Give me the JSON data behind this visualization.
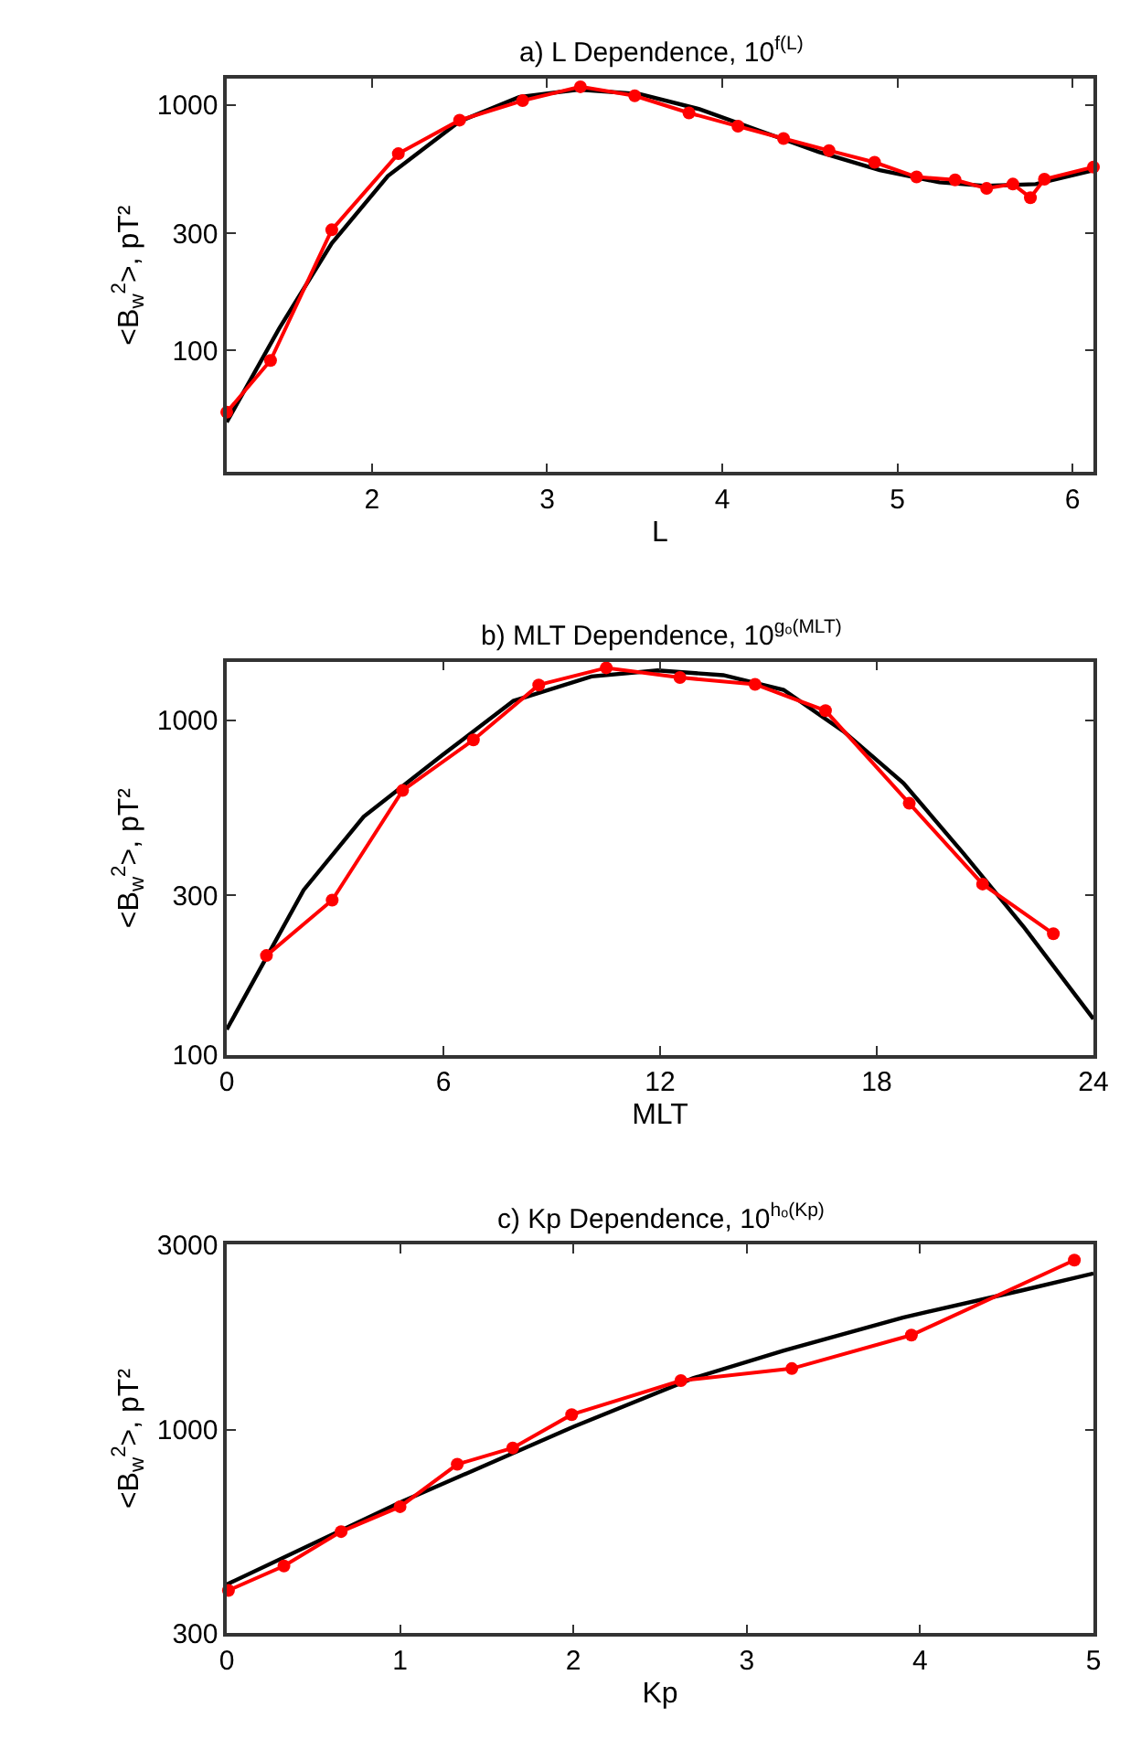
{
  "chart_data": [
    {
      "type": "line",
      "title": "a) L Dependence, 10$^{f(L)}$",
      "xlabel": "L",
      "ylabel": "<B$_{w}$$^{2}$>, pT²",
      "log": "y",
      "xlim": [
        1.17,
        6.12
      ],
      "xticks": [
        2,
        3,
        4,
        5,
        6
      ],
      "ylim": [
        32,
        1280
      ],
      "yticks": [
        100,
        300,
        1000
      ],
      "series": [
        {
          "color": "#ff0000",
          "marker": "circle",
          "x": [
            1.17,
            1.42,
            1.77,
            2.15,
            2.5,
            2.86,
            3.19,
            3.5,
            3.81,
            4.09,
            4.35,
            4.61,
            4.87,
            5.11,
            5.33,
            5.51,
            5.66,
            5.76,
            5.84,
            6.12
          ],
          "values": [
            56,
            91,
            310,
            633,
            867,
            1041,
            1186,
            1090,
            928,
            819,
            730,
            652,
            584,
            509,
            495,
            457,
            476,
            419,
            498,
            558
          ]
        },
        {
          "color": "#000000",
          "marker": "none",
          "x": [
            1.17,
            1.47,
            1.77,
            2.09,
            2.5,
            2.84,
            3.18,
            3.53,
            3.87,
            4.21,
            4.55,
            4.9,
            5.24,
            5.51,
            5.79,
            6.12
          ],
          "values": [
            51,
            123,
            273,
            513,
            857,
            1077,
            1154,
            1108,
            961,
            787,
            644,
            542,
            484,
            468,
            476,
            542
          ]
        }
      ]
    },
    {
      "type": "line",
      "title": "b) MLT Dependence, 10$^{gₒ(MLT)}$",
      "xlabel": "MLT",
      "ylabel": "<B$_{w}$$^{2}$>, pT²",
      "log": "y",
      "xlim": [
        0,
        24
      ],
      "xticks": [
        0,
        6,
        12,
        18,
        24
      ],
      "ylim": [
        100,
        1500
      ],
      "yticks": [
        100,
        300,
        1000
      ],
      "series": [
        {
          "color": "#ff0000",
          "marker": "circle",
          "x": [
            1.1,
            2.92,
            4.87,
            6.83,
            8.64,
            10.51,
            12.55,
            14.63,
            16.58,
            18.9,
            20.93,
            22.89
          ],
          "values": [
            198,
            290,
            617,
            874,
            1276,
            1436,
            1343,
            1282,
            1069,
            565,
            324,
            230
          ]
        },
        {
          "color": "#000000",
          "marker": "none",
          "x": [
            0,
            2.13,
            3.79,
            5.95,
            7.94,
            10.1,
            11.93,
            13.75,
            15.42,
            17.08,
            18.74,
            20.4,
            22.06,
            24
          ],
          "values": [
            119,
            311,
            515,
            784,
            1144,
            1353,
            1411,
            1365,
            1234,
            927,
            649,
            400,
            242,
            128
          ]
        }
      ]
    },
    {
      "type": "line",
      "title": "c) Kp Dependence, 10$^{hₒ(Kp)}$",
      "xlabel": "Kp",
      "ylabel": "<B$_{w}$$^{2}$>, pT²",
      "log": "y",
      "xlim": [
        0,
        5
      ],
      "xticks": [
        0,
        1,
        2,
        3,
        4,
        5
      ],
      "ylim": [
        300,
        3000
      ],
      "yticks": [
        300,
        1000,
        3000
      ],
      "series": [
        {
          "color": "#ff0000",
          "marker": "circle",
          "x": [
            0.01,
            0.33,
            0.66,
            1.0,
            1.33,
            1.65,
            1.99,
            2.62,
            3.26,
            3.95,
            4.89
          ],
          "values": [
            386,
            446,
            547,
            634,
            815,
            898,
            1094,
            1338,
            1437,
            1752,
            2733
          ]
        },
        {
          "color": "#000000",
          "marker": "none",
          "x": [
            0,
            1,
            2,
            2.69,
            3.21,
            3.9,
            4.59,
            5
          ],
          "values": [
            400,
            650,
            1018,
            1357,
            1596,
            1944,
            2285,
            2525
          ]
        }
      ]
    }
  ]
}
